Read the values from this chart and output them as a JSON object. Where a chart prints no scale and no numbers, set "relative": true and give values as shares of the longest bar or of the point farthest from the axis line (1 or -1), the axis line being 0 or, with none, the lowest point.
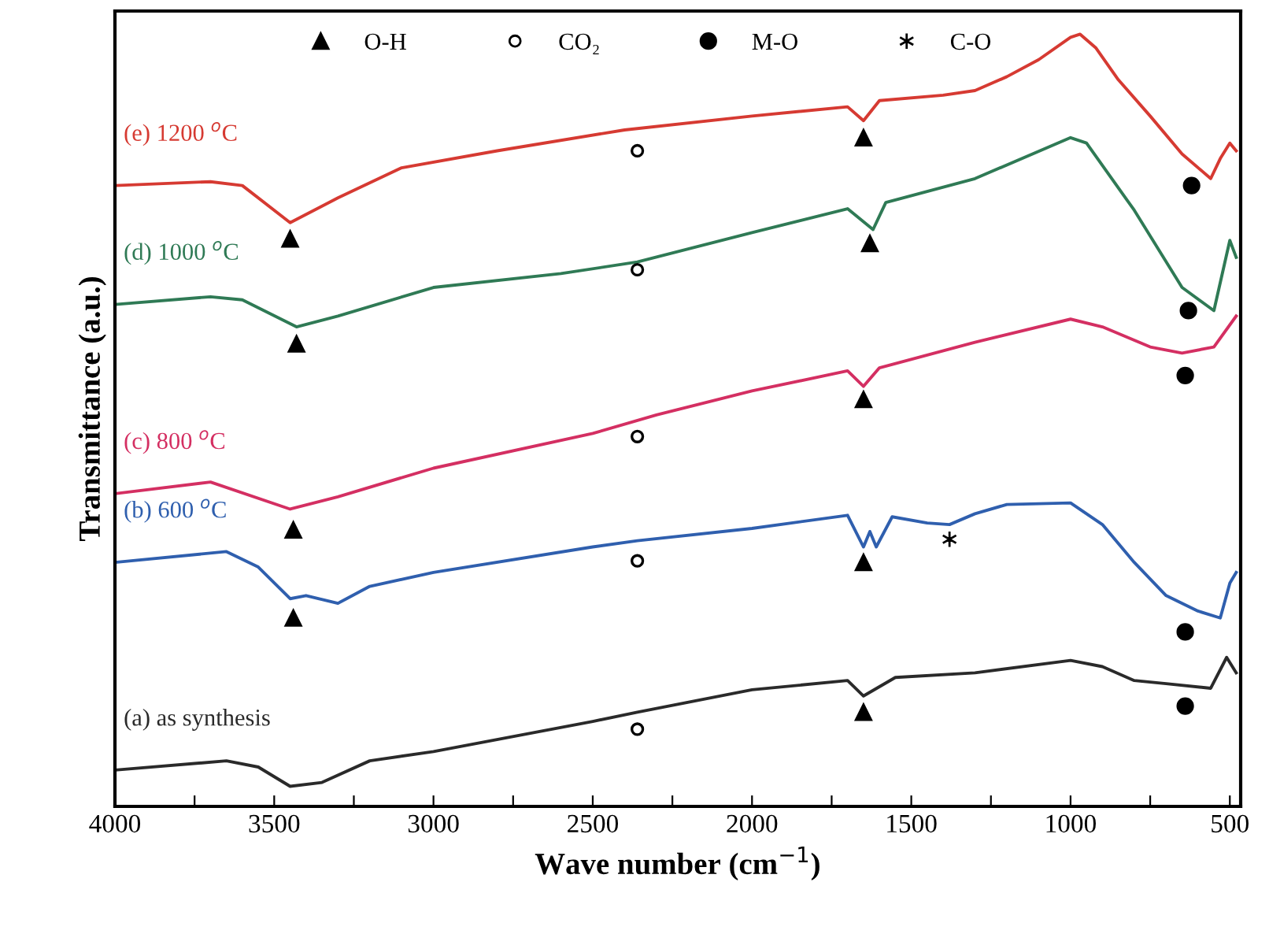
{
  "chart_data": {
    "type": "line",
    "relative": true,
    "xlabel": "Wave number (cm$^{−1}$)",
    "ylabel": "Transmittance (a.u.)",
    "xlim": [
      4000,
      466
    ],
    "xticks": [
      4000,
      {
        "value": 3750,
        "label": null
      },
      3500,
      {
        "value": 3250,
        "label": null
      },
      3000,
      {
        "value": 2750,
        "label": null
      },
      2500,
      {
        "value": 2250,
        "label": null
      },
      2000,
      {
        "value": 1750,
        "label": null
      },
      1500,
      {
        "value": 1250,
        "label": null
      },
      1000,
      {
        "value": 750,
        "label": null
      },
      500
    ],
    "grid": false,
    "legend": "top",
    "series": [
      {
        "name": "(e) 1200 $^{o}$C",
        "color": "#d63a32",
        "x": [
          4000,
          3700,
          3600,
          3450,
          3300,
          3100,
          2800,
          2400,
          2000,
          1700,
          1650,
          1600,
          1400,
          1300,
          1200,
          1100,
          1000,
          970,
          920,
          850,
          750,
          650,
          560,
          530,
          500,
          480
        ],
        "values": [
          0.804,
          0.809,
          0.804,
          0.756,
          0.788,
          0.827,
          0.849,
          0.876,
          0.894,
          0.906,
          0.888,
          0.914,
          0.921,
          0.927,
          0.945,
          0.967,
          0.996,
          1,
          0.982,
          0.941,
          0.894,
          0.845,
          0.813,
          0.839,
          0.859,
          0.849
        ]
      },
      {
        "name": "(d) 1000 $^{o}$C",
        "color": "#2f7a55",
        "x": [
          4000,
          3700,
          3600,
          3430,
          3300,
          3000,
          2600,
          2360,
          2000,
          1700,
          1620,
          1580,
          1300,
          1000,
          950,
          800,
          650,
          550,
          500,
          480
        ],
        "values": [
          0.65,
          0.66,
          0.656,
          0.621,
          0.635,
          0.672,
          0.69,
          0.705,
          0.743,
          0.774,
          0.747,
          0.782,
          0.813,
          0.866,
          0.859,
          0.772,
          0.672,
          0.642,
          0.733,
          0.711
        ]
      },
      {
        "name": "(c) 800 $^{o}$C",
        "color": "#d42f62",
        "x": [
          4000,
          3700,
          3450,
          3300,
          3000,
          2500,
          2300,
          2000,
          1700,
          1650,
          1600,
          1300,
          1000,
          900,
          750,
          650,
          550,
          480
        ],
        "values": [
          0.405,
          0.42,
          0.385,
          0.401,
          0.438,
          0.483,
          0.507,
          0.538,
          0.564,
          0.544,
          0.568,
          0.601,
          0.631,
          0.621,
          0.595,
          0.587,
          0.595,
          0.635
        ]
      },
      {
        "name": "(b) 600 $^{o}$C",
        "color": "#2f5fae",
        "x": [
          4000,
          3650,
          3550,
          3450,
          3400,
          3300,
          3200,
          3000,
          2500,
          2360,
          2000,
          1700,
          1650,
          1630,
          1610,
          1560,
          1450,
          1380,
          1300,
          1200,
          1000,
          900,
          800,
          700,
          600,
          530,
          500,
          480
        ],
        "values": [
          0.316,
          0.33,
          0.31,
          0.269,
          0.273,
          0.263,
          0.285,
          0.303,
          0.336,
          0.344,
          0.36,
          0.377,
          0.336,
          0.356,
          0.336,
          0.375,
          0.367,
          0.365,
          0.379,
          0.391,
          0.393,
          0.365,
          0.316,
          0.273,
          0.253,
          0.244,
          0.289,
          0.303
        ]
      },
      {
        "name": "(a) as synthesis",
        "color": "#2a2a2a",
        "x": [
          4000,
          3650,
          3550,
          3450,
          3350,
          3200,
          3000,
          2500,
          2360,
          2000,
          1700,
          1650,
          1550,
          1300,
          1000,
          900,
          800,
          700,
          560,
          510,
          480
        ],
        "values": [
          0.047,
          0.059,
          0.051,
          0.026,
          0.031,
          0.059,
          0.071,
          0.11,
          0.122,
          0.151,
          0.163,
          0.143,
          0.167,
          0.173,
          0.189,
          0.181,
          0.163,
          0.159,
          0.153,
          0.193,
          0.173
        ]
      },
      {
        "name": "O-H",
        "type": "scatter",
        "marker": "triangle",
        "color": "#000000",
        "x": [
          3450,
          3430,
          3440,
          3440,
          1650,
          1630,
          1650,
          1650,
          1650
        ],
        "values": [
          0.735,
          0.599,
          0.358,
          0.244,
          0.866,
          0.729,
          0.527,
          0.316,
          0.122
        ]
      },
      {
        "name": "CO₂",
        "type": "scatter",
        "marker": "circle",
        "color": "#ffffff",
        "x": [
          2360,
          2360,
          2360,
          2360,
          2360
        ],
        "values": [
          0.849,
          0.695,
          0.479,
          0.318,
          0.1
        ]
      },
      {
        "name": "M-O",
        "type": "scatter",
        "marker": "circle",
        "color": "#000000",
        "x": [
          620,
          630,
          640,
          640,
          640
        ],
        "values": [
          0.804,
          0.642,
          0.558,
          0.226,
          0.13
        ]
      },
      {
        "name": "C-O",
        "type": "scatter",
        "marker": "cross",
        "color": "#000000",
        "x": [
          1380
        ],
        "values": [
          0.346
        ]
      }
    ]
  }
}
